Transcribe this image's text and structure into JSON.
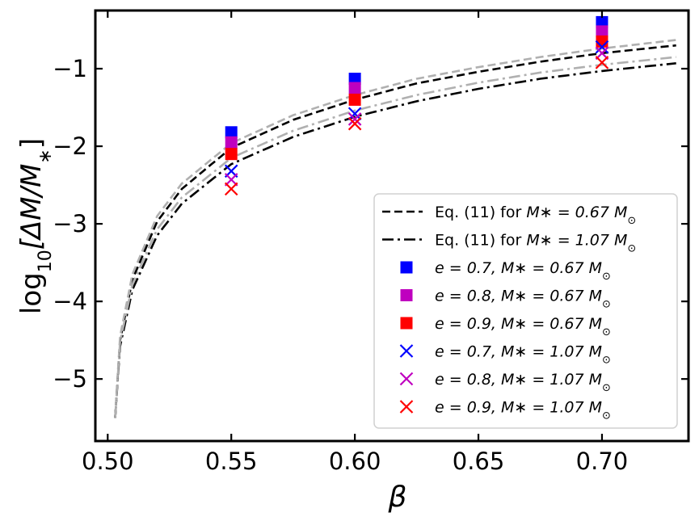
{
  "chart_data": {
    "type": "scatter",
    "xlabel": "β",
    "ylabel": "log10[ΔM/M*]",
    "ylabel_parts": {
      "func": "log",
      "sub": "10",
      "body": "[ΔM/M",
      "star": "∗",
      "close": "]"
    },
    "xlim": [
      0.495,
      0.735
    ],
    "ylim": [
      -5.8,
      -0.25
    ],
    "xticks": [
      0.5,
      0.55,
      0.6,
      0.65,
      0.7
    ],
    "xtick_labels": [
      "0.50",
      "0.55",
      "0.60",
      "0.65",
      "0.70"
    ],
    "yticks": [
      -1,
      -2,
      -3,
      -4,
      -5
    ],
    "ytick_labels": [
      "−1",
      "−2",
      "−3",
      "−4",
      "−5"
    ],
    "grid": false,
    "legend_position": "lower-right",
    "legend": [
      {
        "marker": "dashed-line",
        "color": "#000000",
        "prefix": "Eq. (11) for ",
        "math": "M∗ = 0.67 M",
        "suffix": "⊙"
      },
      {
        "marker": "dashdot-line",
        "color": "#000000",
        "prefix": "Eq. (11) for ",
        "math": "M∗ = 1.07 M",
        "suffix": "⊙"
      },
      {
        "marker": "square",
        "color": "#0000ff",
        "prefix": "",
        "math": "e = 0.7, M∗ = 0.67 M",
        "suffix": "⊙"
      },
      {
        "marker": "square",
        "color": "#bf00bf",
        "prefix": "",
        "math": "e = 0.8, M∗ = 0.67 M",
        "suffix": "⊙"
      },
      {
        "marker": "square",
        "color": "#ff0000",
        "prefix": "",
        "math": "e = 0.9, M∗ = 0.67 M",
        "suffix": "⊙"
      },
      {
        "marker": "x",
        "color": "#0000ff",
        "prefix": "",
        "math": "e = 0.7, M∗ = 1.07 M",
        "suffix": "⊙"
      },
      {
        "marker": "x",
        "color": "#bf00bf",
        "prefix": "",
        "math": "e = 0.8, M∗ = 1.07 M",
        "suffix": "⊙"
      },
      {
        "marker": "x",
        "color": "#ff0000",
        "prefix": "",
        "math": "e = 0.9, M∗ = 1.07 M",
        "suffix": "⊙"
      }
    ],
    "curves": [
      {
        "style": "dashed",
        "color": "#000000",
        "x": [
          0.503,
          0.505,
          0.51,
          0.52,
          0.53,
          0.55,
          0.575,
          0.6,
          0.625,
          0.65,
          0.675,
          0.7,
          0.73
        ],
        "y": [
          -5.5,
          -4.5,
          -3.72,
          -2.97,
          -2.55,
          -2.02,
          -1.66,
          -1.4,
          -1.19,
          -1.04,
          -0.91,
          -0.8,
          -0.7
        ]
      },
      {
        "style": "dashed",
        "color": "#b0b0b0",
        "x": [
          0.503,
          0.505,
          0.51,
          0.52,
          0.53,
          0.55,
          0.575,
          0.6,
          0.625,
          0.65,
          0.675,
          0.7,
          0.73
        ],
        "y": [
          -5.5,
          -4.45,
          -3.65,
          -2.9,
          -2.48,
          -1.96,
          -1.6,
          -1.34,
          -1.13,
          -0.98,
          -0.85,
          -0.74,
          -0.63
        ]
      },
      {
        "style": "dashdot",
        "color": "#000000",
        "x": [
          0.503,
          0.505,
          0.51,
          0.52,
          0.53,
          0.55,
          0.575,
          0.6,
          0.625,
          0.65,
          0.675,
          0.7,
          0.73
        ],
        "y": [
          -5.5,
          -4.58,
          -3.85,
          -3.15,
          -2.74,
          -2.23,
          -1.88,
          -1.62,
          -1.42,
          -1.26,
          -1.13,
          -1.03,
          -0.93
        ]
      },
      {
        "style": "dashdot",
        "color": "#b0b0b0",
        "x": [
          0.503,
          0.505,
          0.51,
          0.52,
          0.53,
          0.55,
          0.575,
          0.6,
          0.625,
          0.65,
          0.675,
          0.7,
          0.73
        ],
        "y": [
          -5.5,
          -4.52,
          -3.78,
          -3.07,
          -2.66,
          -2.15,
          -1.8,
          -1.54,
          -1.34,
          -1.18,
          -1.05,
          -0.95,
          -0.85
        ]
      }
    ],
    "series": [
      {
        "marker": "square",
        "color": "#0000ff",
        "x": [
          0.55,
          0.6,
          0.7
        ],
        "y": [
          -1.82,
          -1.13,
          -0.4
        ]
      },
      {
        "marker": "square",
        "color": "#bf00bf",
        "x": [
          0.55,
          0.6,
          0.7
        ],
        "y": [
          -1.95,
          -1.25,
          -0.52
        ]
      },
      {
        "marker": "square",
        "color": "#ff0000",
        "x": [
          0.55,
          0.6,
          0.7
        ],
        "y": [
          -2.1,
          -1.4,
          -0.65
        ]
      },
      {
        "marker": "x",
        "color": "#0000ff",
        "x": [
          0.55,
          0.6,
          0.7
        ],
        "y": [
          -2.32,
          -1.58,
          -0.72
        ]
      },
      {
        "marker": "x",
        "color": "#bf00bf",
        "x": [
          0.55,
          0.6,
          0.7
        ],
        "y": [
          -2.43,
          -1.65,
          -0.8
        ]
      },
      {
        "marker": "x",
        "color": "#ff0000",
        "x": [
          0.55,
          0.6,
          0.7
        ],
        "y": [
          -2.55,
          -1.71,
          -0.92
        ]
      }
    ]
  }
}
